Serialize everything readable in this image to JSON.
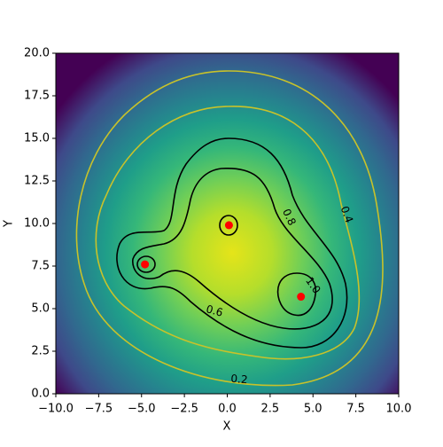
{
  "chart_data": {
    "type": "contour",
    "xlabel": "X",
    "ylabel": "Y",
    "xlim": [
      -10,
      10
    ],
    "ylim": [
      0,
      20
    ],
    "xticks": [
      {
        "value": -10,
        "label": "−10.0"
      },
      {
        "value": -7.5,
        "label": "−7.5"
      },
      {
        "value": -5,
        "label": "−5.0"
      },
      {
        "value": -2.5,
        "label": "−2.5"
      },
      {
        "value": 0,
        "label": "0.0"
      },
      2.5,
      {
        "value": 5,
        "label": "5.0"
      },
      7.5,
      {
        "value": 10,
        "label": "10.0"
      }
    ],
    "yticks": [
      {
        "value": 0,
        "label": "0.0"
      },
      2.5,
      {
        "value": 5,
        "label": "5.0"
      },
      7.5,
      {
        "value": 10,
        "label": "10.0"
      },
      12.5,
      {
        "value": 15,
        "label": "15.0"
      },
      17.5,
      {
        "value": 20,
        "label": "20.0"
      }
    ],
    "levels": [
      0.2,
      0.4,
      0.6,
      0.8,
      {
        "value": 1,
        "label": "1.0"
      }
    ],
    "level_colors": [
      "#c8c22a",
      "#c8c22a",
      "#000000",
      "#000000",
      "#000000"
    ],
    "points": {
      "x": [
        -4.8,
        0.1,
        4.3
      ],
      "y": [
        7.6,
        9.9,
        5.7
      ],
      "color": "#ff0000"
    }
  }
}
